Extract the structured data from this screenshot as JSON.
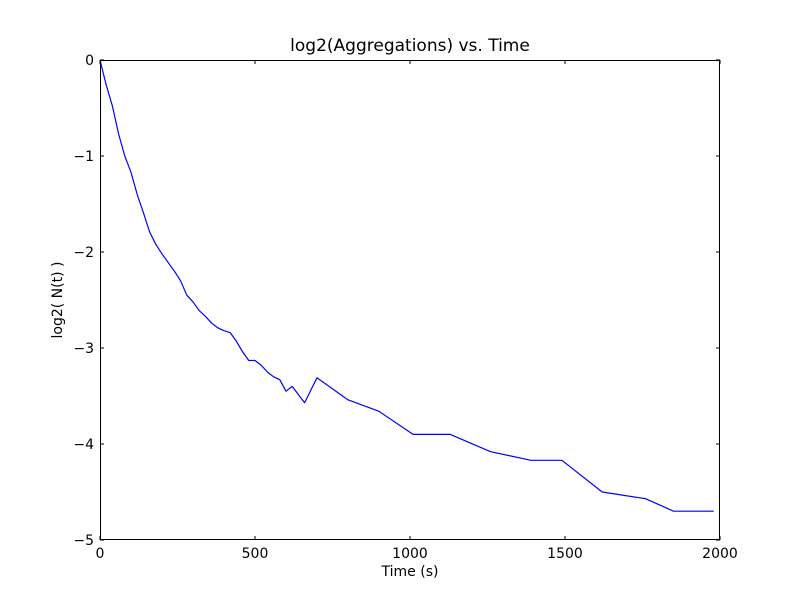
{
  "chart_data": {
    "type": "line",
    "title": "log2(Aggregations)  vs. Time",
    "xlabel": "Time (s)",
    "ylabel": "log2( N(t) )",
    "xlim": [
      0,
      2000
    ],
    "ylim": [
      -5,
      0
    ],
    "xticks": [
      0,
      500,
      1000,
      1500,
      2000
    ],
    "yticks": [
      0,
      -1,
      -2,
      -3,
      -4,
      -5
    ],
    "xtick_labels": [
      "0",
      "500",
      "1000",
      "1500",
      "2000"
    ],
    "ytick_labels": [
      "0",
      "−1",
      "−2",
      "−3",
      "−4",
      "−5"
    ],
    "grid": false,
    "series": [
      {
        "color": "#0000ff",
        "x": [
          0,
          20,
          40,
          60,
          80,
          100,
          120,
          140,
          160,
          180,
          200,
          220,
          240,
          260,
          280,
          300,
          320,
          340,
          360,
          380,
          400,
          420,
          440,
          460,
          480,
          500,
          520,
          540,
          560,
          580,
          600,
          620,
          660,
          700,
          800,
          900,
          1010,
          1130,
          1260,
          1390,
          1490,
          1620,
          1760,
          1850,
          1980
        ],
        "y": [
          0,
          -0.26,
          -0.48,
          -0.77,
          -1.0,
          -1.17,
          -1.4,
          -1.59,
          -1.79,
          -1.92,
          -2.02,
          -2.11,
          -2.2,
          -2.3,
          -2.45,
          -2.52,
          -2.61,
          -2.67,
          -2.74,
          -2.79,
          -2.82,
          -2.84,
          -2.93,
          -3.04,
          -3.13,
          -3.13,
          -3.18,
          -3.25,
          -3.3,
          -3.33,
          -3.45,
          -3.4,
          -3.57,
          -3.31,
          -3.54,
          -3.66,
          -3.9,
          -3.9,
          -4.08,
          -4.17,
          -4.17,
          -4.5,
          -4.57,
          -4.7,
          -4.7
        ]
      }
    ]
  }
}
